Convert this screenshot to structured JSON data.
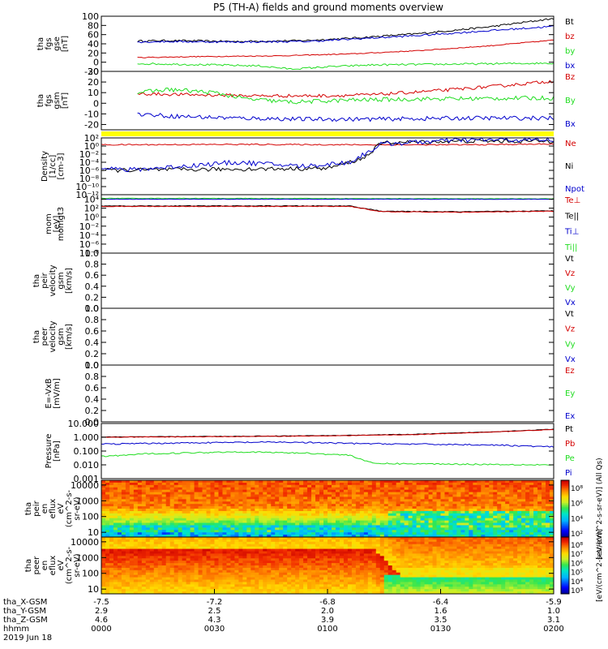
{
  "title": "P5 (TH-A) fields and ground moments overview",
  "colors": {
    "black": "#000000",
    "red": "#d40000",
    "green": "#22dd22",
    "blue": "#0000cc",
    "yellow": "#ffff00"
  },
  "chart_data": [
    {
      "type": "line",
      "id": "fgs-gse",
      "ylabel": [
        "tha",
        "fgs",
        "gse",
        "[nT]"
      ],
      "ylim": [
        -20,
        100
      ],
      "ticks": [
        "100",
        "80",
        "60",
        "40",
        "20",
        "0",
        "-20"
      ],
      "tick_values": [
        100,
        80,
        60,
        40,
        20,
        0,
        -20
      ],
      "legend": [
        "Bt",
        "bz",
        "by",
        "bx"
      ],
      "series": [
        {
          "name": "Bt",
          "color": "#000000",
          "x": [
            0.08,
            0.15,
            0.3,
            0.45,
            0.55,
            0.7,
            0.85,
            1.0
          ],
          "y": [
            46,
            47,
            45,
            47,
            52,
            62,
            76,
            95
          ],
          "noise": 2
        },
        {
          "name": "bz",
          "color": "#d40000",
          "x": [
            0.08,
            0.2,
            0.4,
            0.55,
            0.7,
            0.85,
            1.0
          ],
          "y": [
            10,
            12,
            14,
            18,
            25,
            35,
            48
          ],
          "noise": 1
        },
        {
          "name": "by",
          "color": "#22dd22",
          "x": [
            0.08,
            0.2,
            0.35,
            0.42,
            0.5,
            0.6,
            0.8,
            1.0
          ],
          "y": [
            -3,
            -5,
            -8,
            -15,
            -10,
            -6,
            -4,
            -2
          ],
          "noise": 2
        },
        {
          "name": "bx",
          "color": "#0000cc",
          "x": [
            0.08,
            0.15,
            0.3,
            0.45,
            0.55,
            0.7,
            0.85,
            1.0
          ],
          "y": [
            44,
            45,
            44,
            45,
            50,
            58,
            68,
            78
          ],
          "noise": 2
        }
      ]
    },
    {
      "type": "line",
      "id": "fgs-gsm",
      "ylabel": [
        "tha",
        "fgs",
        "gsm",
        "[nT]"
      ],
      "ylim": [
        -25,
        30
      ],
      "ticks": [
        "30",
        "20",
        "10",
        "0",
        "-10",
        "-20"
      ],
      "tick_values": [
        30,
        20,
        10,
        0,
        -10,
        -20
      ],
      "legend": [
        "Bz",
        "By",
        "Bx"
      ],
      "series": [
        {
          "name": "Bz",
          "color": "#d40000",
          "x": [
            0.08,
            0.2,
            0.35,
            0.5,
            0.6,
            0.75,
            0.9,
            1.0
          ],
          "y": [
            9,
            8,
            7,
            7,
            8,
            12,
            17,
            21
          ],
          "noise": 1.5
        },
        {
          "name": "By",
          "color": "#22dd22",
          "x": [
            0.08,
            0.15,
            0.25,
            0.32,
            0.42,
            0.55,
            0.7,
            1.0
          ],
          "y": [
            10,
            13,
            10,
            4,
            1,
            3,
            4,
            5
          ],
          "noise": 2
        },
        {
          "name": "Bx",
          "color": "#0000cc",
          "x": [
            0.08,
            0.15,
            0.3,
            0.45,
            0.6,
            0.8,
            1.0
          ],
          "y": [
            -10,
            -12,
            -14,
            -15,
            -15,
            -14,
            -14
          ],
          "noise": 2
        }
      ]
    },
    {
      "type": "bar",
      "id": "status-bar",
      "color": "#ffff00"
    },
    {
      "type": "line",
      "id": "density",
      "log": true,
      "ylabel": [
        "Density",
        "[1/cc]",
        "[cm-3]"
      ],
      "ylim": [
        -12,
        2
      ],
      "ticks": [
        "10²",
        "10⁰",
        "10⁻²",
        "10⁻⁴",
        "10⁻⁶",
        "10⁻⁸",
        "10⁻¹⁰",
        "10⁻¹²"
      ],
      "tick_values": [
        2,
        0,
        -2,
        -4,
        -6,
        -8,
        -10,
        -12
      ],
      "legend": [
        "Ne",
        "Ni",
        "Npot"
      ],
      "series": [
        {
          "name": "Ne",
          "color": "#d40000",
          "x": [
            0.0,
            0.3,
            0.6,
            0.8,
            1.0
          ],
          "y": [
            0.3,
            0.4,
            0.3,
            0.3,
            0.5
          ],
          "noise": 0.15
        },
        {
          "name": "Ni",
          "color": "#000000",
          "x": [
            0.0,
            0.5,
            0.58,
            0.62,
            0.8,
            1.0
          ],
          "y": [
            -6,
            -5.5,
            -3,
            0.8,
            1.2,
            1.2
          ],
          "noise": 0.5
        },
        {
          "name": "Npot",
          "color": "#0000cc",
          "x": [
            0.0,
            0.05,
            0.3,
            0.45,
            0.55,
            0.62,
            0.8,
            1.0
          ],
          "y": [
            -5,
            -6,
            -4,
            -5,
            -4,
            0.5,
            1.5,
            1.5
          ],
          "noise": 0.6
        }
      ]
    },
    {
      "type": "line",
      "id": "temperature",
      "log": true,
      "ylabel": [
        "mom",
        "[eV]"
      ],
      "ylim": [
        -8,
        5
      ],
      "ticks": [
        "10⁴",
        "10²",
        "10⁰",
        "10⁻²",
        "10⁻⁴",
        "10⁻⁶",
        "10⁻⁸"
      ],
      "tick_values": [
        4,
        2,
        0,
        -2,
        -4,
        -6,
        -8
      ],
      "legend": [
        "Te⊥",
        "Te||",
        "Ti⊥",
        "Ti||"
      ],
      "series": [
        {
          "name": "Ti||",
          "color": "#22dd22",
          "x": [
            0,
            1
          ],
          "y": [
            4.2,
            4.1
          ],
          "noise": 0.05
        },
        {
          "name": "Ti⊥",
          "color": "#0000cc",
          "x": [
            0,
            1
          ],
          "y": [
            4.0,
            4.0
          ],
          "noise": 0.05
        },
        {
          "name": "Te||",
          "color": "#000000",
          "x": [
            0.0,
            0.55,
            0.62,
            0.8,
            1.0
          ],
          "y": [
            2.5,
            2.5,
            1.3,
            1.2,
            1.4
          ],
          "noise": 0.08
        },
        {
          "name": "Te⊥",
          "color": "#d40000",
          "x": [
            0.0,
            0.55,
            0.62,
            0.8,
            1.0
          ],
          "y": [
            2.4,
            2.4,
            1.2,
            1.1,
            1.3
          ],
          "noise": 0.08
        }
      ]
    },
    {
      "type": "line",
      "id": "peir-velocity",
      "empty": true,
      "ylabel": [
        "tha",
        "peir",
        "velocity",
        "gsm",
        "[km/s]"
      ],
      "ylim": [
        0,
        1
      ],
      "ticks": [
        "1.0",
        "0.8",
        "0.6",
        "0.4",
        "0.2",
        "0.0"
      ],
      "tick_values": [
        1,
        0.8,
        0.6,
        0.4,
        0.2,
        0
      ],
      "legend": [
        "Vt",
        "Vz",
        "Vy",
        "Vx"
      ],
      "series": []
    },
    {
      "type": "line",
      "id": "peer-velocity",
      "empty": true,
      "ylabel": [
        "tha",
        "peer",
        "velocity",
        "gsm",
        "[km/s]"
      ],
      "ylim": [
        0,
        1
      ],
      "ticks": [
        "1.0",
        "0.8",
        "0.6",
        "0.4",
        "0.2",
        "0.0"
      ],
      "tick_values": [
        1,
        0.8,
        0.6,
        0.4,
        0.2,
        0
      ],
      "legend": [
        "Vt",
        "Vz",
        "Vy",
        "Vx"
      ],
      "series": []
    },
    {
      "type": "line",
      "id": "efield",
      "empty": true,
      "ylabel": [
        "E=-VxB",
        "[mV/m]"
      ],
      "ylim": [
        0,
        1
      ],
      "ticks": [
        "1.0",
        "0.8",
        "0.6",
        "0.4",
        "0.2",
        "0.0"
      ],
      "tick_values": [
        1,
        0.8,
        0.6,
        0.4,
        0.2,
        0
      ],
      "legend": [
        "Ez",
        "Ey",
        "Ex"
      ],
      "series": []
    },
    {
      "type": "line",
      "id": "pressure",
      "log": true,
      "ylabel": [
        "Pressure",
        "[nPa]"
      ],
      "ylim": [
        -3,
        1
      ],
      "ticks": [
        "10.000",
        "1.000",
        "0.100",
        "0.010",
        "0.001"
      ],
      "tick_values": [
        1,
        0,
        -1,
        -2,
        -3
      ],
      "legend": [
        "Pt",
        "Pb",
        "Pe",
        "Pi"
      ],
      "series": [
        {
          "name": "Pt",
          "color": "#000000",
          "x": [
            0.0,
            0.3,
            0.5,
            0.7,
            0.85,
            1.0
          ],
          "y": [
            0.02,
            0.07,
            0.12,
            0.22,
            0.38,
            0.58
          ],
          "noise": 0.02
        },
        {
          "name": "Pb",
          "color": "#d40000",
          "x": [
            0.0,
            0.3,
            0.5,
            0.7,
            0.85,
            1.0
          ],
          "y": [
            0.0,
            0.05,
            0.1,
            0.2,
            0.36,
            0.56
          ],
          "noise": 0.02
        },
        {
          "name": "Pi",
          "color": "#0000cc",
          "x": [
            0.0,
            0.2,
            0.4,
            0.55,
            0.7,
            0.85,
            1.0
          ],
          "y": [
            -0.5,
            -0.4,
            -0.35,
            -0.45,
            -0.5,
            -0.55,
            -0.7
          ],
          "noise": 0.05
        },
        {
          "name": "Pe",
          "color": "#22dd22",
          "x": [
            0.0,
            0.1,
            0.3,
            0.45,
            0.55,
            0.6,
            0.8,
            1.0
          ],
          "y": [
            -1.4,
            -1.2,
            -1.05,
            -1.15,
            -1.3,
            -1.9,
            -1.95,
            -2.0
          ],
          "noise": 0.05
        }
      ]
    },
    {
      "type": "heatmap",
      "id": "peir-eflux",
      "ylabel": [
        "tha",
        "peir",
        "en",
        "eflux",
        "eV",
        "(cm^2-s-",
        "sr-eV)"
      ],
      "ylim": [
        5,
        20000
      ],
      "ticks": [
        "10000",
        "1000",
        "100",
        "10"
      ],
      "tick_values": [
        10000,
        1000,
        100,
        10
      ],
      "colorbar": {
        "ticks": [
          "10⁸",
          "10⁶",
          "10⁴",
          "10²"
        ],
        "label": "[eV/(cm^2-s-sr-eV)] (All Qs)"
      }
    },
    {
      "type": "heatmap",
      "id": "peer-eflux",
      "ylabel": [
        "tha",
        "peer",
        "en",
        "eflux",
        "eV",
        "(cm^2-s-",
        "sr-eV)"
      ],
      "ylim": [
        5,
        20000
      ],
      "ticks": [
        "10000",
        "1000",
        "100",
        "10"
      ],
      "tick_values": [
        10000,
        1000,
        100,
        10
      ],
      "colorbar": {
        "ticks": [
          "10⁸",
          "10⁷",
          "10⁶",
          "10⁵",
          "10⁴",
          "10³"
        ],
        "label": "[eV/(cm^2-s-sr-eV)]"
      }
    }
  ],
  "time_axis": {
    "row_labels": [
      "tha_X-GSM",
      "tha_Y-GSM",
      "tha_Z-GSM",
      "hhmm",
      "2019 Jun 18"
    ],
    "columns": [
      {
        "x": "-7.5",
        "y": "2.9",
        "z": "4.6",
        "t": "0000"
      },
      {
        "x": "-7.2",
        "y": "2.5",
        "z": "4.3",
        "t": "0030"
      },
      {
        "x": "-6.8",
        "y": "2.0",
        "z": "3.9",
        "t": "0100"
      },
      {
        "x": "-6.4",
        "y": "1.6",
        "z": "3.5",
        "t": "0130"
      },
      {
        "x": "-5.9",
        "y": "1.0",
        "z": "3.1",
        "t": "0200"
      }
    ]
  },
  "overlay_text": {
    "temp_panel_label": "momgt3",
    "peir_overlay": "(All Qs)",
    "peer_overlay": "(All Qs)",
    "heatmap_label_overlay": "10⁸"
  }
}
